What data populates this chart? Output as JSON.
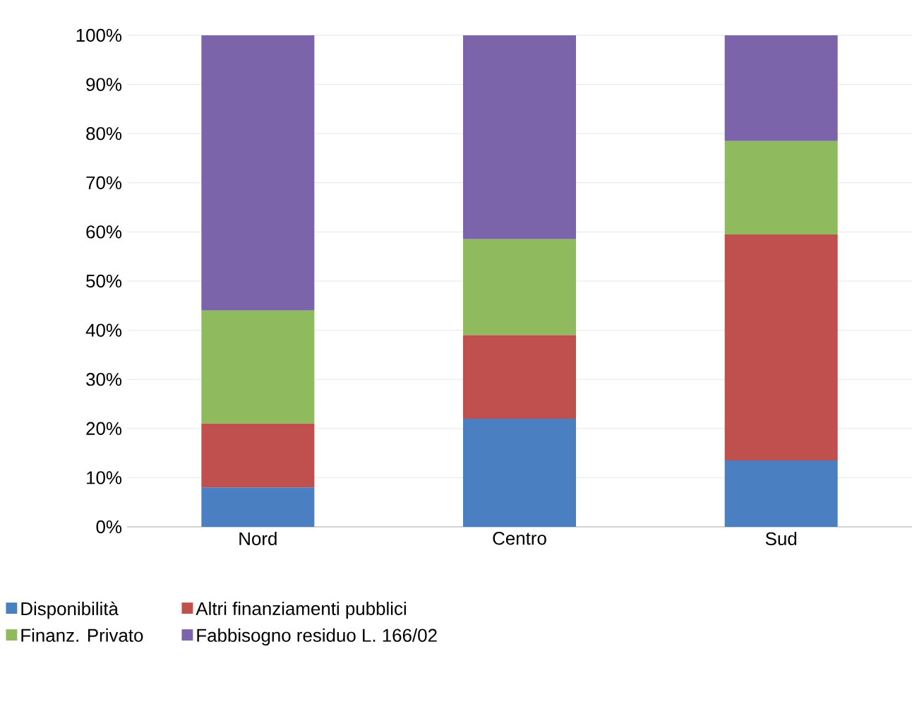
{
  "chart_data": {
    "type": "bar",
    "stacked": true,
    "categories": [
      "Nord",
      "Centro",
      "Sud"
    ],
    "series": [
      {
        "name": "Disponibilità",
        "color": "#4a7fc1",
        "values": [
          8,
          22,
          13.5
        ]
      },
      {
        "name": "Altri finanziamenti pubblici",
        "color": "#c0504d",
        "values": [
          13,
          17,
          46
        ]
      },
      {
        "name": "Finanz. Privato",
        "color": "#8fbb5e",
        "values": [
          23,
          19.5,
          19
        ]
      },
      {
        "name": "Fabbisogno residuo L. 166/02",
        "color": "#7b64a9",
        "values": [
          56,
          41.5,
          21.5
        ]
      }
    ],
    "ylim": [
      0,
      100
    ],
    "yticks": [
      {
        "value": 0,
        "label": "0%"
      },
      {
        "value": 10,
        "label": "10%"
      },
      {
        "value": 20,
        "label": "20%"
      },
      {
        "value": 30,
        "label": "30%"
      },
      {
        "value": 40,
        "label": "40%"
      },
      {
        "value": 50,
        "label": "50%"
      },
      {
        "value": 60,
        "label": "60%"
      },
      {
        "value": 70,
        "label": "70%"
      },
      {
        "value": 80,
        "label": "80%"
      },
      {
        "value": 90,
        "label": "90%"
      },
      {
        "value": 100,
        "label": "100%"
      }
    ],
    "grid": "y",
    "legend": "bottom"
  }
}
